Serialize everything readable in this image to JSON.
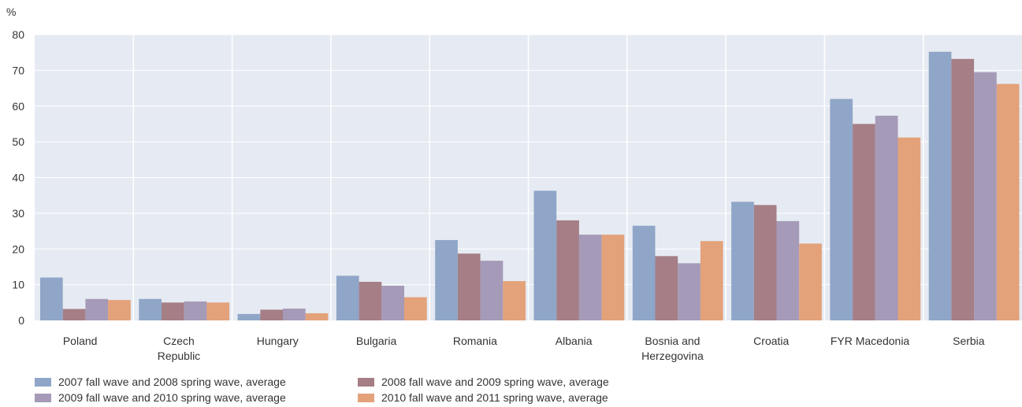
{
  "chart_data": {
    "type": "bar",
    "ylabel": "%",
    "ylim": [
      0,
      80
    ],
    "yticks": [
      0,
      10,
      20,
      30,
      40,
      50,
      60,
      70,
      80
    ],
    "grid": true,
    "legend_placement": "bottom",
    "categories": [
      [
        "Poland"
      ],
      [
        "Czech",
        "Republic"
      ],
      [
        "Hungary"
      ],
      [
        "Bulgaria"
      ],
      [
        "Romania"
      ],
      [
        "Albania"
      ],
      [
        "Bosnia and",
        "Herzegovina"
      ],
      [
        "Croatia"
      ],
      [
        "FYR Macedonia"
      ],
      [
        "Serbia"
      ]
    ],
    "series": [
      {
        "name": "2007 fall wave and 2008 spring wave, average",
        "color": "#8fa6c8",
        "values": [
          12,
          6,
          1.8,
          12.5,
          22.5,
          36.3,
          26.5,
          33.2,
          62,
          75.2
        ]
      },
      {
        "name": "2008 fall wave and 2009 spring wave, average",
        "color": "#a57e86",
        "values": [
          3.2,
          5,
          3,
          10.8,
          18.7,
          28,
          18,
          32.3,
          55,
          73.2
        ]
      },
      {
        "name": "2009 fall wave and 2010 spring wave, average",
        "color": "#a59ab7",
        "values": [
          6,
          5.3,
          3.3,
          9.7,
          16.7,
          24,
          16,
          27.8,
          57.3,
          69.5
        ]
      },
      {
        "name": "2010 fall wave and 2011 spring wave, average",
        "color": "#e3a27a",
        "values": [
          5.7,
          5,
          2,
          6.5,
          11,
          24,
          22.2,
          21.5,
          51.2,
          66.2
        ]
      }
    ],
    "colors": {
      "plot_background": "#e6eaf2",
      "grid": "#ffffff"
    }
  },
  "legend_order": [
    0,
    1,
    2,
    3
  ]
}
